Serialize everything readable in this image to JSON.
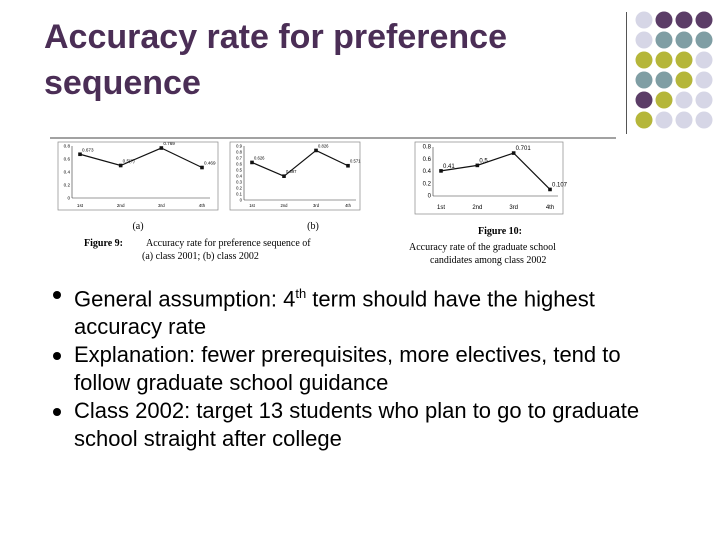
{
  "title": "Accuracy rate for preference sequence",
  "colors": {
    "title": "#4b2e56",
    "purple": "#5b3d67",
    "teal": "#7f9ea4",
    "olive": "#b5b63a",
    "lavender": "#d6d6e6"
  },
  "figure": {
    "chart_data": [
      {
        "type": "line",
        "panel": "(a)",
        "categories": [
          "1st",
          "2nd",
          "3rd",
          "4th"
        ],
        "values": [
          0.673,
          0.5,
          0.769,
          0.469
        ],
        "point_labels": [
          "0.673",
          "0.5(?)",
          "0.769",
          "0.469"
        ],
        "ylim": [
          0,
          0.8
        ],
        "yticks": [
          "0.8",
          "0.6",
          "0.4",
          "0.2",
          "0"
        ]
      },
      {
        "type": "line",
        "panel": "(b)",
        "categories": [
          "1st",
          "2nd",
          "3rd",
          "4th"
        ],
        "values": [
          0.626,
          0.397,
          0.826,
          0.571
        ],
        "point_labels": [
          "0.626",
          "0.397",
          "0.826",
          "0.571"
        ],
        "ylim": [
          0,
          0.9
        ],
        "yticks": [
          "0.9",
          "0.8",
          "0.7",
          "0.6",
          "0.5",
          "0.4",
          "0.3",
          "0.2",
          "0.1",
          "0"
        ]
      },
      {
        "type": "line",
        "panel": "fig10",
        "categories": [
          "1st",
          "2nd",
          "3rd",
          "4th"
        ],
        "values": [
          0.41,
          0.5,
          0.701,
          0.107
        ],
        "point_labels": [
          "0.41",
          "0.5",
          "0.701",
          "0.107"
        ],
        "ylim": [
          0,
          0.8
        ],
        "yticks": [
          "0.8",
          "0.6",
          "0.4",
          "0.2",
          "0"
        ]
      }
    ],
    "sub_a": "(a)",
    "sub_b": "(b)",
    "fig9_label": "Figure 9:",
    "fig9_line1": "Accuracy rate for preference sequence of",
    "fig9_line2": "(a) class 2001; (b) class 2002",
    "fig10_label": "Figure 10:",
    "fig10_line1": "Accuracy rate of the graduate school",
    "fig10_line2": "candidates among class 2002"
  },
  "bullets": [
    {
      "pre": "General assumption: 4",
      "sup": "th",
      "post": " term should have the highest accuracy rate"
    },
    {
      "text": "Explanation: fewer prerequisites, more electives, tend to follow graduate school guidance"
    },
    {
      "text": "Class 2002: target 13 students who plan to go to graduate school straight after college"
    }
  ]
}
